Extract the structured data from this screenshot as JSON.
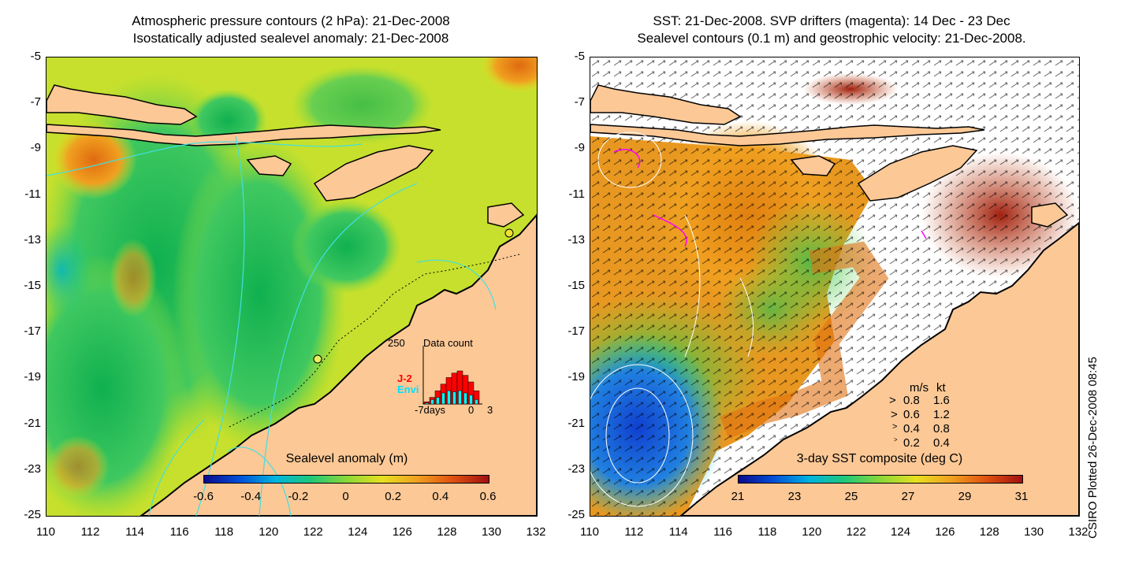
{
  "left_panel": {
    "title_line1": "Atmospheric pressure contours (2 hPa): 21-Dec-2008",
    "title_line2": "Isostatically adjusted sealevel anomaly: 21-Dec-2008",
    "colorbar": {
      "title": "Sealevel anomaly (m)",
      "ticks": [
        "-0.6",
        "-0.4",
        "-0.2",
        "0",
        "0.2",
        "0.4",
        "0.6"
      ],
      "colors": [
        "#0a0a8c",
        "#0050d8",
        "#00b4e0",
        "#20c878",
        "#8ad838",
        "#e8e020",
        "#f0a020",
        "#e05010",
        "#a01010"
      ]
    },
    "inset": {
      "max_label": "250",
      "title": "Data count",
      "series": [
        {
          "name": "J-2",
          "color": "#ff0000",
          "values": [
            10,
            30,
            60,
            90,
            120,
            140,
            150,
            130,
            100,
            60
          ]
        },
        {
          "name": "Envi",
          "color": "#00ffff",
          "values": [
            5,
            20,
            30,
            50,
            60,
            55,
            60,
            50,
            40,
            20
          ]
        }
      ],
      "x_ticks": [
        "-7days",
        "0",
        "3"
      ]
    }
  },
  "right_panel": {
    "title_line1": "SST: 21-Dec-2008. SVP drifters (magenta): 14 Dec - 23 Dec",
    "title_line2": "Sealevel contours (0.1 m) and geostrophic velocity: 21-Dec-2008.",
    "colorbar": {
      "title": "3-day SST composite (deg C)",
      "ticks": [
        "21",
        "23",
        "25",
        "27",
        "29",
        "31"
      ],
      "colors": [
        "#0a0a8c",
        "#0050d8",
        "#00b4e0",
        "#20c878",
        "#8ad838",
        "#e8e020",
        "#f0a020",
        "#e05010",
        "#a01010"
      ]
    },
    "velocity_legend": {
      "header_ms": "m/s",
      "header_kt": "kt",
      "rows": [
        {
          "ms": "0.8",
          "kt": "1.6"
        },
        {
          "ms": "0.6",
          "kt": "1.2"
        },
        {
          "ms": "0.4",
          "kt": "0.8"
        },
        {
          "ms": "0.2",
          "kt": "0.4"
        }
      ]
    }
  },
  "axes": {
    "y_ticks": [
      "-5",
      "-7",
      "-9",
      "-11",
      "-13",
      "-15",
      "-17",
      "-19",
      "-21",
      "-23",
      "-25"
    ],
    "x_ticks": [
      "110",
      "112",
      "114",
      "116",
      "118",
      "120",
      "122",
      "124",
      "126",
      "128",
      "130",
      "132"
    ]
  },
  "credit": "CSIRO Plotted 26-Dec-2008 08:45",
  "colors": {
    "land": "#fcc896",
    "contour_cyan": "#40e0e0",
    "drifter": "#ff00ff"
  }
}
